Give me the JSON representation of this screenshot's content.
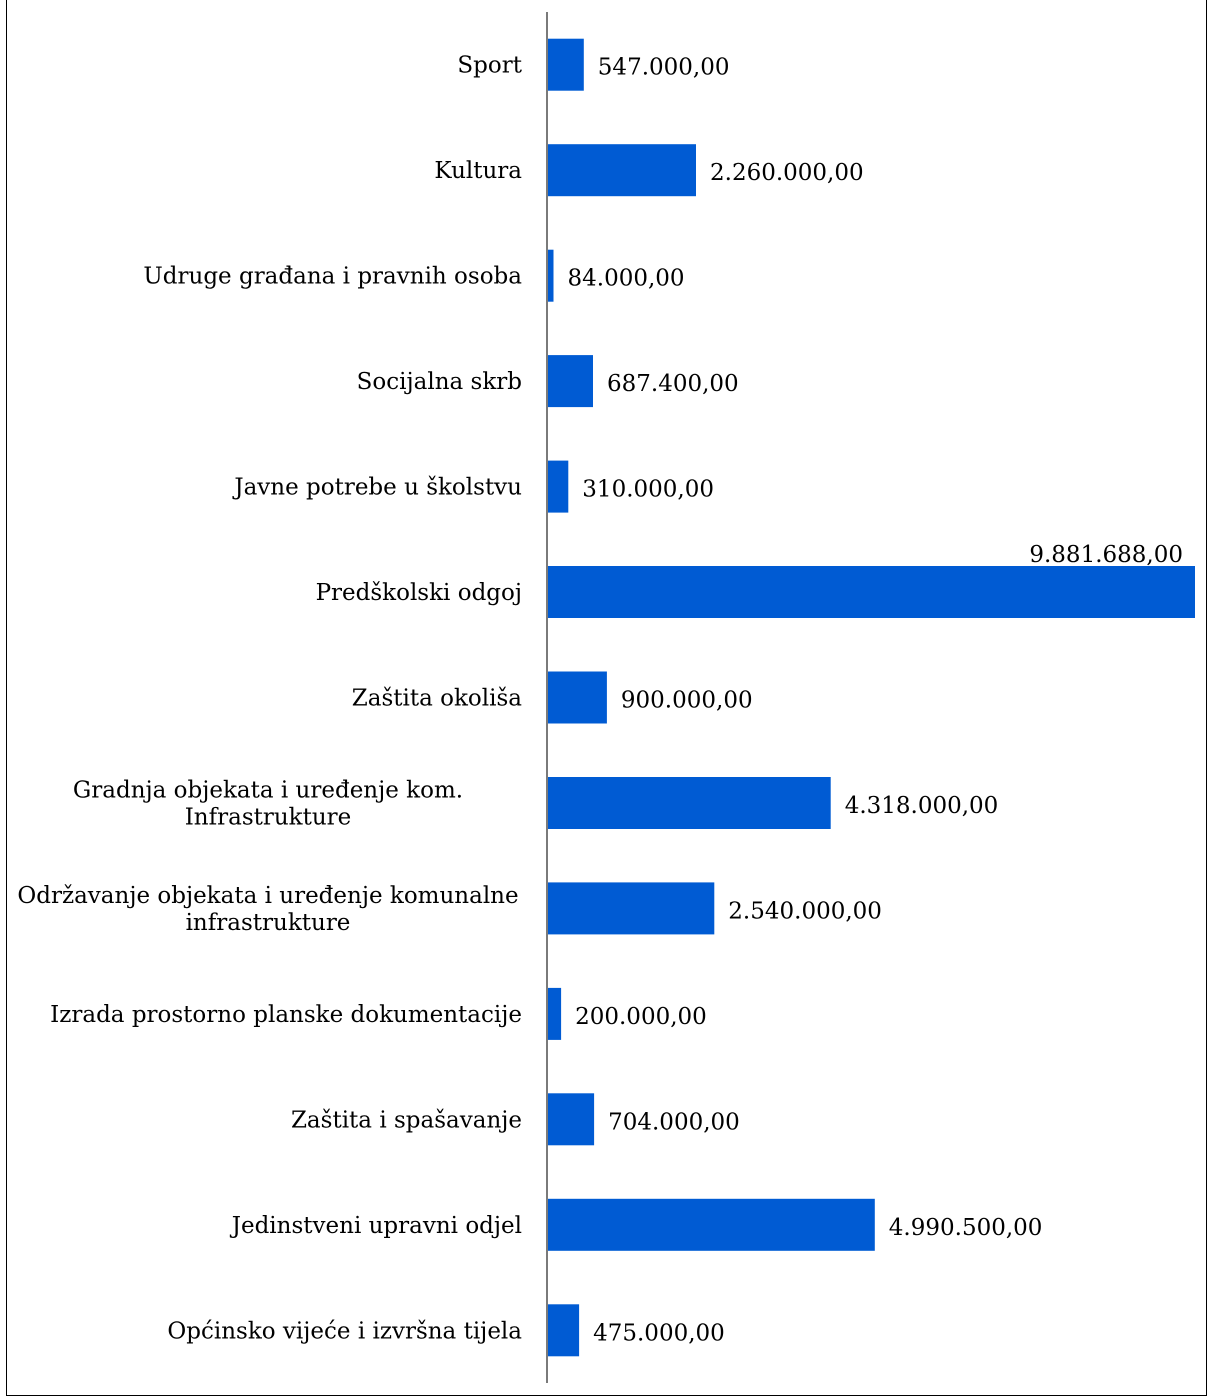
{
  "chart_data": {
    "type": "bar",
    "orientation": "horizontal",
    "categories": [
      "Sport",
      "Kultura",
      "Udruge građana i pravnih osoba",
      "Socijalna skrb",
      "Javne potrebe u školstvu",
      "Predškolski odgoj",
      "Zaštita okoliša",
      "Gradnja objekata i uređenje kom. Infrastrukture",
      "Održavanje objekata i uređenje komunalne infrastrukture",
      "Izrada prostorno planske dokumentacije",
      "Zaštita i spašavanje",
      "Jedinstveni upravni odjel",
      "Općinsko vijeće i izvršna tijela"
    ],
    "category_lines": [
      [
        "Sport"
      ],
      [
        "Kultura"
      ],
      [
        "Udruge građana i pravnih osoba"
      ],
      [
        "Socijalna skrb"
      ],
      [
        "Javne potrebe u školstvu"
      ],
      [
        "Predškolski odgoj"
      ],
      [
        "Zaštita okoliša"
      ],
      [
        "Gradnja objekata i uređenje kom.",
        "Infrastrukture"
      ],
      [
        "Održavanje objekata i uređenje komunalne",
        "infrastrukture"
      ],
      [
        "Izrada prostorno planske dokumentacije"
      ],
      [
        "Zaštita i spašavanje"
      ],
      [
        "Jedinstveni upravni odjel"
      ],
      [
        "Općinsko vijeće i izvršna tijela"
      ]
    ],
    "values": [
      547000,
      2260000,
      84000,
      687400,
      310000,
      9881688,
      900000,
      4318000,
      2540000,
      200000,
      704000,
      4990500,
      475000
    ],
    "value_labels": [
      "547.000,00",
      "2.260.000,00",
      "84.000,00",
      "687.400,00",
      "310.000,00",
      "9.881.688,00",
      "900.000,00",
      "4.318.000,00",
      "2.540.000,00",
      "200.000,00",
      "704.000,00",
      "4.990.500,00",
      "475.000,00"
    ],
    "xlim": [
      0,
      9881688
    ],
    "bar_color": "#005bd3",
    "grid": false,
    "legend": "none",
    "title": "",
    "xlabel": "",
    "ylabel": ""
  }
}
